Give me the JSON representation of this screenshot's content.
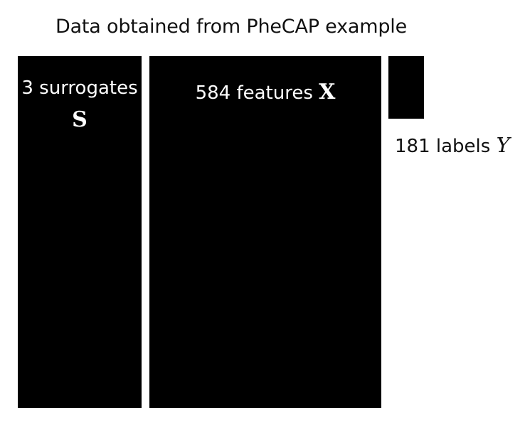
{
  "title": "Data obtained from PheCAP example",
  "blocks": {
    "surrogates": {
      "label": "3 surrogates",
      "symbol": "S",
      "color": "#000000"
    },
    "features": {
      "label": "584 features",
      "symbol": "X",
      "color": "#000000"
    },
    "labels": {
      "label": "181 labels",
      "symbol": "Y",
      "color": "#000000"
    }
  }
}
